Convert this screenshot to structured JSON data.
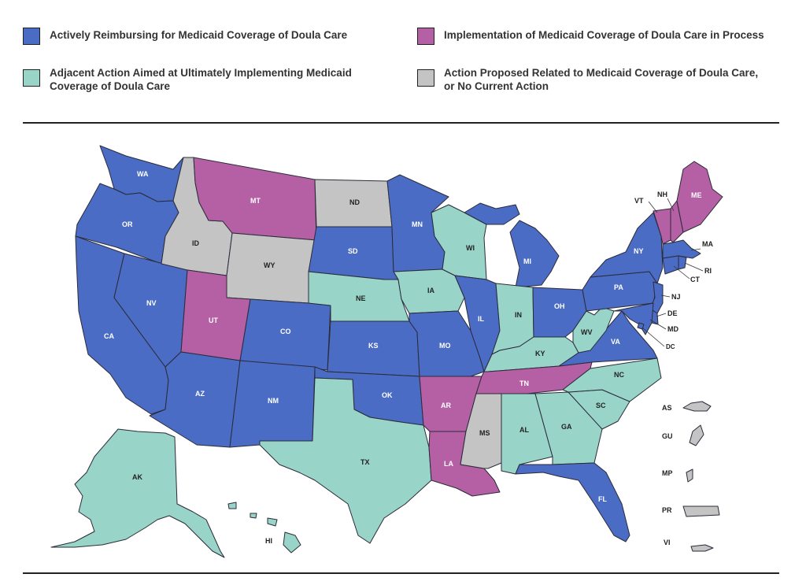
{
  "colors": {
    "reimbursing": "#4a6cc4",
    "in_process": "#b55fa4",
    "adjacent": "#99d4c9",
    "proposed_none": "#c4c4c4"
  },
  "legend": {
    "reimbursing": "Actively Reimbursing for Medicaid Coverage of Doula Care",
    "in_process": "Implementation of Medicaid Coverage of Doula Care in Process",
    "adjacent_1": "Adjacent Action Aimed at Ultimately Implementing Medicaid",
    "adjacent_2": "Coverage of Doula Care",
    "proposed_1": "Action Proposed Related to Medicaid Coverage of Doula Care,",
    "proposed_2": "or No Current Action"
  },
  "states": {
    "WA": "reimbursing",
    "OR": "reimbursing",
    "CA": "reimbursing",
    "NV": "reimbursing",
    "AZ": "reimbursing",
    "NM": "reimbursing",
    "CO": "reimbursing",
    "SD": "reimbursing",
    "MN": "reimbursing",
    "KS": "reimbursing",
    "OK": "reimbursing",
    "MO": "reimbursing",
    "IL": "reimbursing",
    "MI": "reimbursing",
    "OH": "reimbursing",
    "VA": "reimbursing",
    "PA": "reimbursing",
    "NY": "reimbursing",
    "NJ": "reimbursing",
    "DE": "reimbursing",
    "MD": "reimbursing",
    "DC": "reimbursing",
    "MA": "reimbursing",
    "CT": "reimbursing",
    "RI": "reimbursing",
    "FL": "reimbursing",
    "MT": "in_process",
    "UT": "in_process",
    "AR": "in_process",
    "LA": "in_process",
    "TN": "in_process",
    "VT": "in_process",
    "NH": "in_process",
    "ME": "in_process",
    "NE": "adjacent",
    "IA": "adjacent",
    "WI": "adjacent",
    "IN": "adjacent",
    "KY": "adjacent",
    "WV": "adjacent",
    "NC": "adjacent",
    "SC": "adjacent",
    "GA": "adjacent",
    "AL": "adjacent",
    "TX": "adjacent",
    "AK": "adjacent",
    "HI": "adjacent",
    "ID": "proposed_none",
    "WY": "proposed_none",
    "ND": "proposed_none",
    "MS": "proposed_none",
    "AS": "proposed_none",
    "GU": "proposed_none",
    "MP": "proposed_none",
    "PR": "proposed_none",
    "VI": "proposed_none"
  },
  "labels": {
    "WA": "WA",
    "OR": "OR",
    "CA": "CA",
    "NV": "NV",
    "ID": "ID",
    "MT": "MT",
    "WY": "WY",
    "UT": "UT",
    "AZ": "AZ",
    "NM": "NM",
    "CO": "CO",
    "ND": "ND",
    "SD": "SD",
    "NE": "NE",
    "KS": "KS",
    "OK": "OK",
    "TX": "TX",
    "MN": "MN",
    "IA": "IA",
    "MO": "MO",
    "AR": "AR",
    "LA": "LA",
    "WI": "WI",
    "IL": "IL",
    "MI": "MI",
    "IN": "IN",
    "OH": "OH",
    "KY": "KY",
    "TN": "TN",
    "MS": "MS",
    "AL": "AL",
    "GA": "GA",
    "FL": "FL",
    "SC": "SC",
    "NC": "NC",
    "VA": "VA",
    "WV": "WV",
    "PA": "PA",
    "NY": "NY",
    "VT": "VT",
    "NH": "NH",
    "ME": "ME",
    "MA": "MA",
    "RI": "RI",
    "CT": "CT",
    "NJ": "NJ",
    "DE": "DE",
    "MD": "MD",
    "DC": "DC",
    "AK": "AK",
    "HI": "HI",
    "AS": "AS",
    "GU": "GU",
    "MP": "MP",
    "PR": "PR",
    "VI": "VI"
  }
}
